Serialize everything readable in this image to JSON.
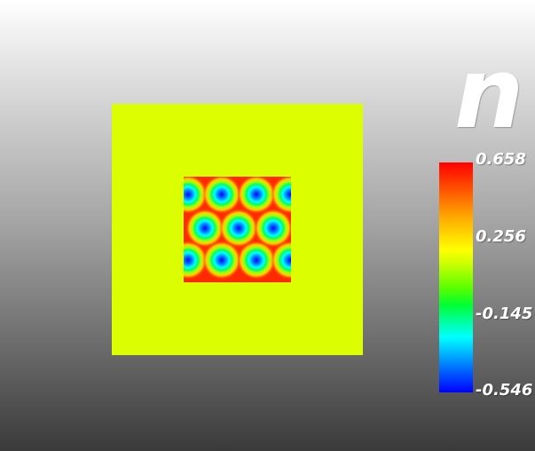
{
  "field": {
    "title": "n"
  },
  "legend": {
    "max_label": "0.658",
    "tick_2_label": "0.256",
    "tick_3_label": "-0.145",
    "min_label": "-0.546",
    "min_value": -0.546,
    "max_value": 0.658,
    "colormap": "rainbow-blue-to-red"
  },
  "scene": {
    "background_top_color": "#ffffff",
    "background_bottom_color": "#3a3a3a",
    "domain_color": "#dbff00",
    "pattern": "hexagonal-spots"
  }
}
